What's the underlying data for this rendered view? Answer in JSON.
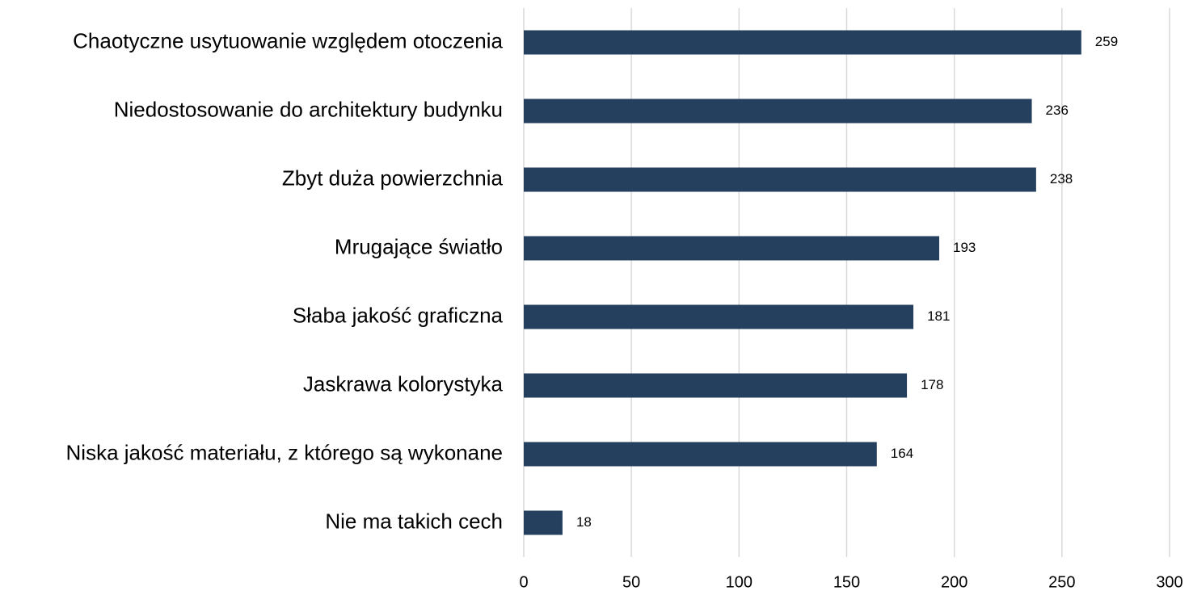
{
  "chart_data": {
    "type": "bar",
    "orientation": "horizontal",
    "categories": [
      "Chaotyczne usytuowanie względem otoczenia",
      "Niedostosowanie do architektury budynku",
      "Zbyt duża powierzchnia",
      "Mrugające światło",
      "Słaba jakość graficzna",
      "Jaskrawa kolorystyka",
      "Niska jakość materiału, z którego są wykonane",
      "Nie ma takich cech"
    ],
    "values": [
      259,
      236,
      238,
      193,
      181,
      178,
      164,
      18
    ],
    "color": "#253f5f",
    "xlim": [
      0,
      300
    ],
    "xticks": [
      0,
      50,
      100,
      150,
      200,
      250,
      300
    ],
    "grid": true
  }
}
